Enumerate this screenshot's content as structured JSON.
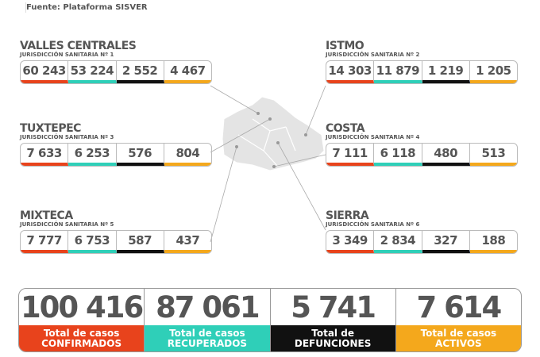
{
  "header": {
    "source": "Fuente: Plataforma SISVER"
  },
  "colors": {
    "confirmed": "#e8431c",
    "recovered": "#2fcfb8",
    "deaths": "#111111",
    "active": "#f4a81c"
  },
  "regions": [
    {
      "name": "VALLES CENTRALES",
      "sub": "JURISDICCIÓN SANITARIA Nº 1",
      "values": [
        "60 243",
        "53 224",
        "2 552",
        "4 467"
      ]
    },
    {
      "name": "ISTMO",
      "sub": "JURISDICCIÓN SANITARIA Nº 2",
      "values": [
        "14 303",
        "11 879",
        "1 219",
        "1 205"
      ]
    },
    {
      "name": "TUXTEPEC",
      "sub": "JURISDICCIÓN SANITARIA Nº 3",
      "values": [
        "7 633",
        "6 253",
        "576",
        "804"
      ]
    },
    {
      "name": "COSTA",
      "sub": "JURISDICCIÓN SANITARIA Nº 4",
      "values": [
        "7 111",
        "6 118",
        "480",
        "513"
      ]
    },
    {
      "name": "MIXTECA",
      "sub": "JURISDICCIÓN SANITARIA Nº 5",
      "values": [
        "7 777",
        "6 753",
        "587",
        "437"
      ]
    },
    {
      "name": "SIERRA",
      "sub": "JURISDICCIÓN SANITARIA Nº 6",
      "values": [
        "3 349",
        "2 834",
        "327",
        "188"
      ]
    }
  ],
  "totals": [
    {
      "value": "100 416",
      "line1": "Total de casos",
      "line2": "CONFIRMADOS"
    },
    {
      "value": "87 061",
      "line1": "Total de casos",
      "line2": "RECUPERADOS"
    },
    {
      "value": "5 741",
      "line1": "Total de",
      "line2": "DEFUNCIONES"
    },
    {
      "value": "7 614",
      "line1": "Total de casos",
      "line2": "ACTIVOS"
    }
  ]
}
